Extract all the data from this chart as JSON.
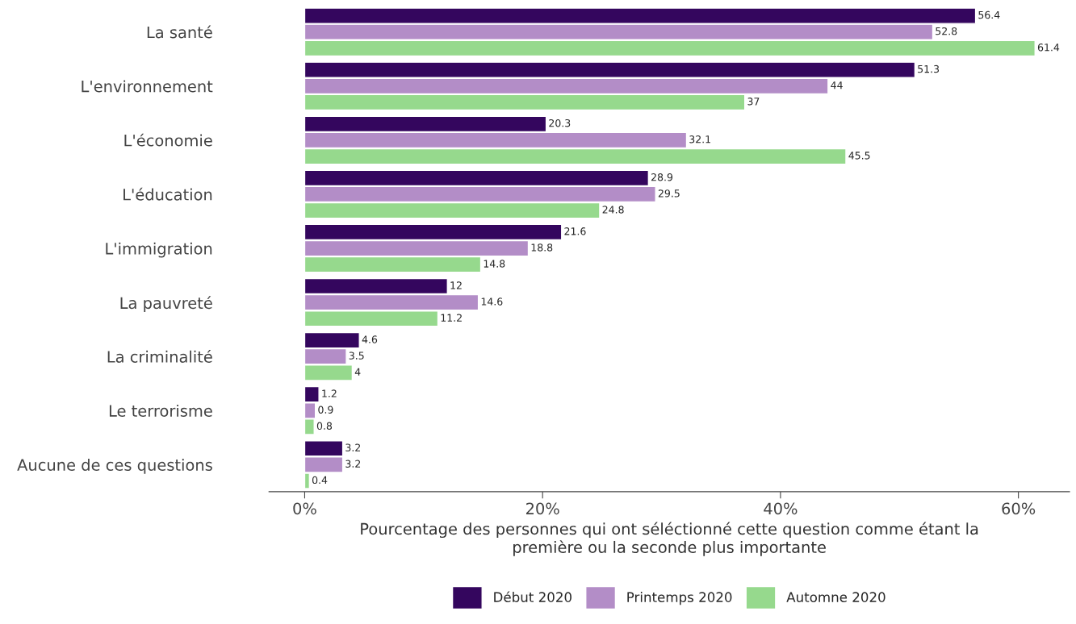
{
  "chart_data": {
    "type": "bar",
    "orientation": "horizontal",
    "categories": [
      "La santé",
      "L'environnement",
      "L'économie",
      "L'éducation",
      "L'immigration",
      "La pauvreté",
      "La criminalité",
      "Le terrorisme",
      "Aucune de ces questions"
    ],
    "series": [
      {
        "name": "Début 2020",
        "color": "#34065e",
        "values": [
          56.4,
          51.3,
          20.3,
          28.9,
          21.6,
          12,
          4.6,
          1.2,
          3.2
        ]
      },
      {
        "name": "Printemps 2020",
        "color": "#b38dc7",
        "values": [
          52.8,
          44,
          32.1,
          29.5,
          18.8,
          14.6,
          3.5,
          0.9,
          3.2
        ]
      },
      {
        "name": "Automne 2020",
        "color": "#96d98d",
        "values": [
          61.4,
          37,
          45.5,
          24.8,
          14.8,
          11.2,
          4,
          0.8,
          0.4
        ]
      }
    ],
    "xlabel": "Pourcentage des personnes qui ont séléctionné cette question comme étant la\npremière ou la seconde plus importante",
    "xlim": [
      -3,
      64.3
    ],
    "xticks": [
      {
        "value": 0,
        "label": "0%"
      },
      {
        "value": 20,
        "label": "20%"
      },
      {
        "value": 40,
        "label": "40%"
      },
      {
        "value": 60,
        "label": "60%"
      }
    ],
    "data_labels": true,
    "grid": false,
    "legend": "bottom"
  }
}
